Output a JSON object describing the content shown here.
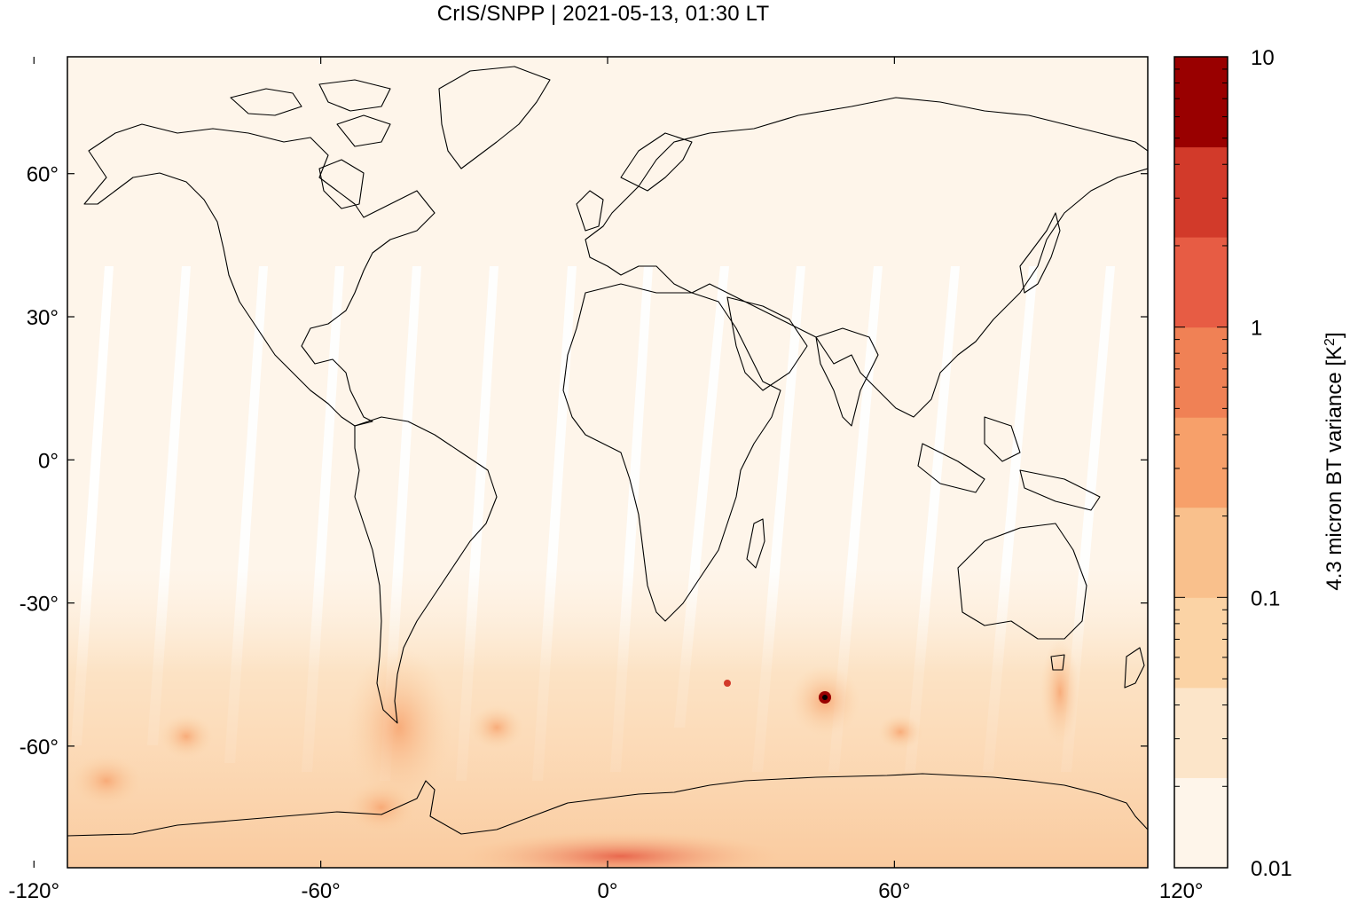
{
  "title": "CrIS/SNPP | 2021-05-13, 01:30 LT",
  "map": {
    "projection": "equirectangular",
    "background_color": "#fef5ea",
    "lon_ticks": [
      "-120°",
      "-60°",
      "0°",
      "60°",
      "120°"
    ],
    "lat_ticks": [
      "60°",
      "30°",
      "0°",
      "-30°",
      "-60°"
    ]
  },
  "colorbar": {
    "label": "4.3 micron BT variance [K",
    "label_sup": "2",
    "label_end": "]",
    "scale": "log",
    "tick_labels": [
      "10",
      "1",
      "0.1",
      "0.01"
    ],
    "colors": [
      "#fef5ea",
      "#fce5c9",
      "#fbd3a5",
      "#f9c08c",
      "#f7a06a",
      "#f08155",
      "#e75c44",
      "#d23a2a",
      "#990000"
    ]
  }
}
